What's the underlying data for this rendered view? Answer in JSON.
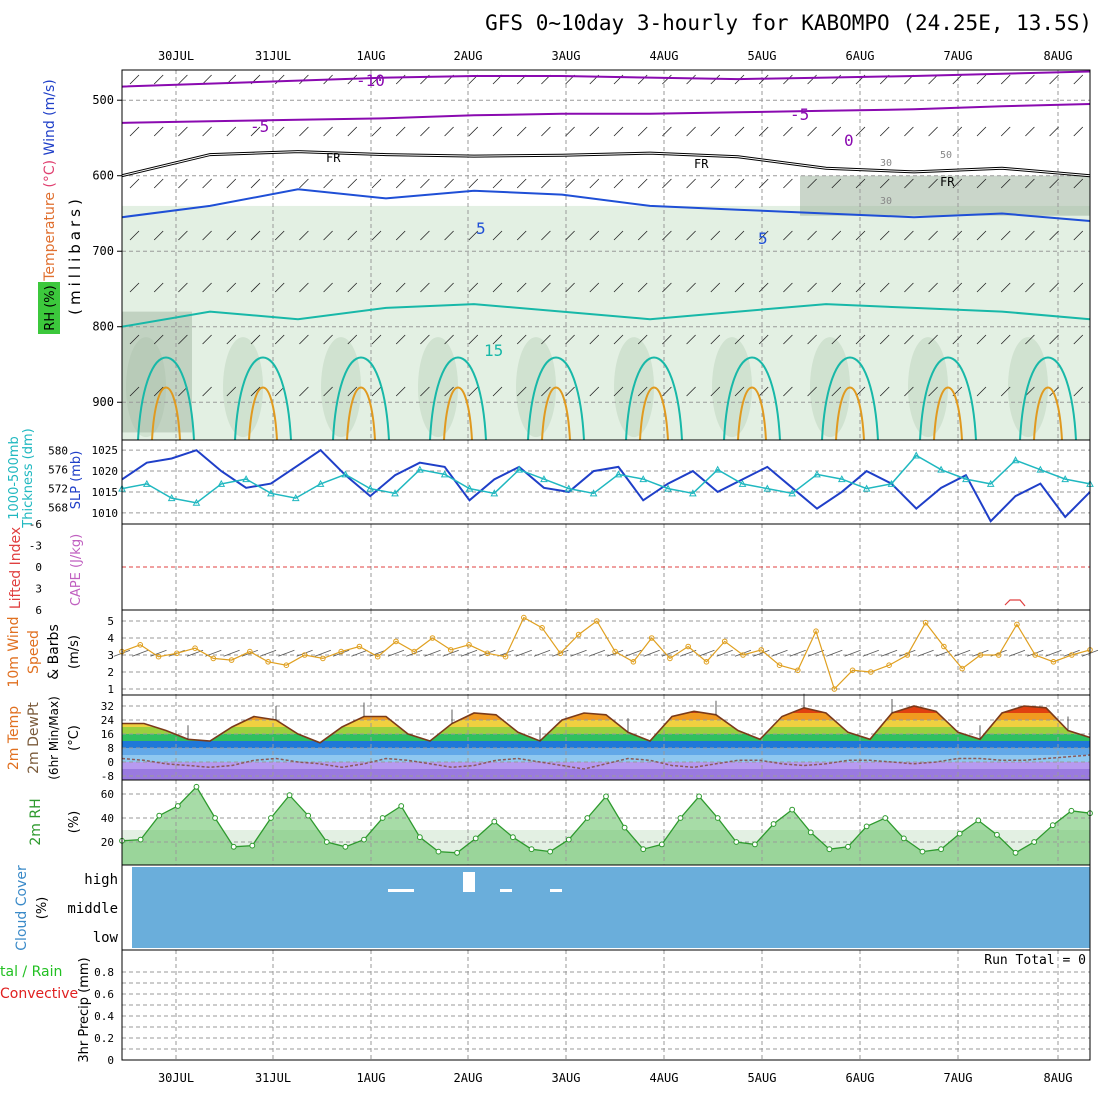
{
  "title": "GFS 0~10day 3-hourly for KABOMPO (24.25E, 13.5S)",
  "colors": {
    "frame": "#000000",
    "grid": "#9a9a9a",
    "rh_light": "#e3f0e3",
    "rh_mid": "#c7dcc7",
    "rh_dark": "#9fb49f",
    "temp_cold": "#8a0ab0",
    "temp_cool": "#1f4fd6",
    "temp_mild": "#1a9ad6",
    "temp_warm": "#18b8a8",
    "temp_hot": "#e09a20",
    "slp": "#1f3fc8",
    "thickness": "#20b8c0",
    "lifted_index": "#e04040",
    "wind": "#e0a020",
    "temp2m": "#7a3a1a",
    "dewpt": "#8a5a5a",
    "rh2m": "#2e9a2e",
    "rh2m_fill": "#5fc05f",
    "cloud": "#6aaedb",
    "cloud_text": "#3a8ac8",
    "precip_rain": "#22c022",
    "precip_conv": "#e02020"
  },
  "time_axis": {
    "day_labels": [
      "30JUL",
      "31JUL",
      "1AUG",
      "2AUG",
      "3AUG",
      "4AUG",
      "5AUG",
      "6AUG",
      "7AUG",
      "8AUG"
    ],
    "step_hours": 3
  },
  "chart_data": [
    {
      "panel": "upper-air",
      "type": "heatmap",
      "ylabel_parts": [
        "Temperature",
        "(°C)",
        "Wind",
        "(m/s)"
      ],
      "ylabel2": "(millibars)",
      "ylabel3": "RH (%)",
      "yticks": [
        "500",
        "600",
        "700",
        "800",
        "900"
      ],
      "ylim": [
        950,
        460
      ],
      "contours": [
        {
          "label": "-10",
          "level": -10,
          "pressure": [
            482,
            478,
            474,
            470,
            468,
            468,
            470,
            472,
            470,
            468,
            465,
            462
          ]
        },
        {
          "label": "-5",
          "level": -5,
          "pressure": [
            530,
            528,
            526,
            524,
            520,
            518,
            518,
            516,
            514,
            512,
            508,
            505
          ]
        },
        {
          "label": "FR",
          "level": 0,
          "pressure": [
            600,
            572,
            568,
            572,
            574,
            573,
            570,
            575,
            590,
            595,
            590,
            600
          ]
        },
        {
          "label": "5",
          "level": 5,
          "pressure": [
            655,
            640,
            618,
            630,
            620,
            625,
            640,
            645,
            650,
            655,
            650,
            660
          ]
        },
        {
          "label": "15",
          "level": 15,
          "pressure": [
            800,
            780,
            790,
            775,
            770,
            780,
            790,
            780,
            770,
            775,
            780,
            790
          ]
        }
      ],
      "contour_labels": [
        "-10",
        "-5",
        "-5",
        "FR",
        "FR",
        "FR",
        "5",
        "5",
        "15",
        "0",
        "30",
        "30",
        "50"
      ]
    },
    {
      "panel": "slp-thickness",
      "type": "line",
      "ylabel_left": "Thickness (dm)",
      "ylabel_left2": "1000-500mb",
      "ylabel_right": "SLP (mb)",
      "yticks_left": [
        "568",
        "572",
        "576",
        "580"
      ],
      "yticks_right": [
        "1010",
        "1015",
        "1020",
        "1025"
      ],
      "series": [
        {
          "values_right": [
            1018,
            1022,
            1023,
            1025,
            1020,
            1016,
            1017,
            1021,
            1025,
            1019,
            1014,
            1019,
            1022,
            1021,
            1013,
            1018,
            1021,
            1016,
            1015,
            1020,
            1021,
            1013,
            1017,
            1020,
            1015,
            1018,
            1021,
            1016,
            1011,
            1015,
            1020,
            1017,
            1011,
            1016,
            1019,
            1008,
            1014,
            1017,
            1009,
            1015
          ]
        },
        {
          "values_left": [
            572,
            573,
            570,
            569,
            573,
            574,
            571,
            570,
            573,
            575,
            572,
            571,
            576,
            575,
            572,
            571,
            576,
            574,
            572,
            571,
            575,
            574,
            572,
            571,
            576,
            573,
            572,
            571,
            575,
            574,
            572,
            573,
            579,
            576,
            574,
            573,
            578,
            576,
            574,
            573
          ]
        }
      ]
    },
    {
      "panel": "lifted-index-cape",
      "type": "line",
      "ylabel": "Lifted Index",
      "ylabel2": "CAPE (J/kg)",
      "yticks": [
        "-6",
        "-3",
        "0",
        "3",
        "6"
      ],
      "ylim": [
        -6,
        6
      ],
      "values": []
    },
    {
      "panel": "wind10m",
      "type": "line",
      "ylabel": "10m Wind",
      "ylabel2": "Speed",
      "ylabel3": "& Barbs",
      "ylabel4": "(m/s)",
      "yticks": [
        "1",
        "2",
        "3",
        "4",
        "5"
      ],
      "ylim": [
        0.8,
        5.5
      ],
      "values": [
        3.2,
        3.6,
        2.9,
        3.1,
        3.4,
        2.8,
        2.7,
        3.2,
        2.6,
        2.4,
        3.0,
        2.8,
        3.2,
        3.5,
        2.9,
        3.8,
        3.2,
        4.0,
        3.3,
        3.6,
        3.1,
        2.9,
        5.2,
        4.6,
        3.1,
        4.2,
        5.0,
        3.2,
        2.6,
        4.0,
        2.8,
        3.5,
        2.6,
        3.8,
        3.0,
        3.3,
        2.4,
        2.1,
        4.4,
        1.0,
        2.1,
        2.0,
        2.4,
        3.0,
        4.9,
        3.5,
        2.2,
        3.0,
        3.0,
        4.8,
        3.0,
        2.6,
        3.0,
        3.3
      ]
    },
    {
      "panel": "temp2m",
      "type": "area",
      "ylabel": "2m Temp",
      "ylabel2": "2m DewPt",
      "ylabel3": "(6hr Min/Max)",
      "ylabel4": "(°C)",
      "yticks": [
        "-8",
        "0",
        "8",
        "16",
        "24",
        "32"
      ],
      "ylim": [
        -10,
        34
      ],
      "temp": [
        22,
        22,
        18,
        13,
        12,
        20,
        26,
        24,
        16,
        11,
        20,
        26,
        26,
        16,
        12,
        22,
        28,
        27,
        17,
        12,
        24,
        28,
        27,
        17,
        12,
        26,
        29,
        27,
        18,
        13,
        26,
        31,
        28,
        17,
        13,
        28,
        32,
        29,
        17,
        13,
        28,
        32,
        31,
        18,
        14
      ],
      "dewpt": [
        2,
        1,
        -1,
        -2,
        -3,
        -2,
        1,
        2,
        0,
        -1,
        -3,
        -1,
        2,
        1,
        -1,
        -3,
        -2,
        1,
        2,
        0,
        -2,
        -4,
        -1,
        2,
        1,
        -2,
        -3,
        -1,
        1,
        1,
        -1,
        -2,
        -1,
        1,
        1,
        0,
        -1,
        0,
        2,
        2,
        1,
        1,
        2,
        3,
        4
      ]
    },
    {
      "panel": "rh2m",
      "type": "area",
      "ylabel": "2m RH",
      "ylabel2": "(%)",
      "yticks": [
        "20",
        "40",
        "60"
      ],
      "ylim": [
        0,
        70
      ],
      "values": [
        21,
        22,
        42,
        50,
        66,
        40,
        16,
        17,
        40,
        59,
        42,
        20,
        16,
        22,
        40,
        50,
        24,
        12,
        11,
        23,
        37,
        24,
        14,
        12,
        22,
        40,
        58,
        32,
        14,
        18,
        40,
        58,
        40,
        20,
        18,
        35,
        47,
        28,
        14,
        16,
        33,
        40,
        23,
        12,
        14,
        27,
        38,
        26,
        11,
        20,
        34,
        46,
        44
      ]
    },
    {
      "panel": "cloud-cover",
      "type": "heatmap",
      "ylabel": "Cloud Cover",
      "ylabel2": "(%)",
      "levels": [
        "high",
        "middle",
        "low"
      ],
      "values": "overcast all levels with brief high-level gaps around 1-3 AUG"
    },
    {
      "panel": "precip",
      "type": "bar",
      "ylabel": "3hr Precip (mm)",
      "ylabel2": "tal / Rain",
      "ylabel3": "Convective",
      "yticks": [
        "0",
        "0.2",
        "0.4",
        "0.6",
        "0.8"
      ],
      "ylim": [
        0,
        1
      ],
      "run_total_label": "Run Total = 0",
      "values": []
    }
  ]
}
